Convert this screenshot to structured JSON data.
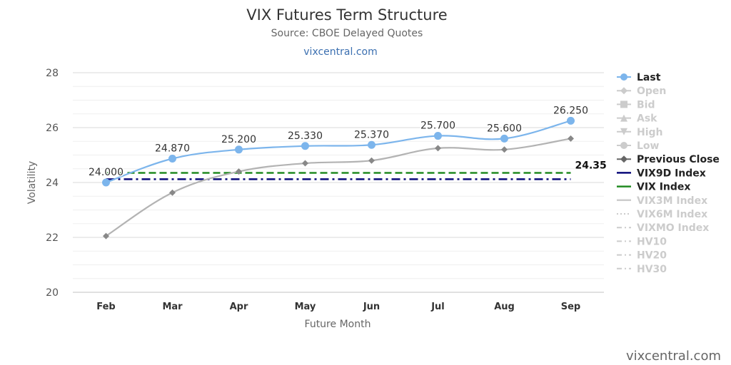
{
  "chart_data": {
    "type": "line",
    "title": "VIX Futures Term Structure",
    "subtitle": "Source: CBOE Delayed Quotes",
    "subtitle_link": "vixcentral.com",
    "credit": "vixcentral.com",
    "xlabel": "Future Month",
    "ylabel": "Volatility",
    "categories": [
      "Feb",
      "Mar",
      "Apr",
      "May",
      "Jun",
      "Jul",
      "Aug",
      "Sep"
    ],
    "ylim": [
      20,
      28
    ],
    "yticks": [
      "20",
      "22",
      "24",
      "26",
      "28"
    ],
    "grid": true,
    "legend_position": "right",
    "series": [
      {
        "name": "Last",
        "values": [
          24.0,
          24.87,
          25.2,
          25.33,
          25.37,
          25.7,
          25.6,
          26.25
        ],
        "labels": [
          "24.000",
          "24.870",
          "25.200",
          "25.330",
          "25.370",
          "25.700",
          "25.600",
          "26.250"
        ],
        "color": "#7cb5ec",
        "marker": "circle"
      },
      {
        "name": "Previous Close",
        "values": [
          22.05,
          23.63,
          24.4,
          24.7,
          24.8,
          25.25,
          25.2,
          25.6
        ],
        "color": "#b3b3b3",
        "marker": "diamond"
      }
    ],
    "reference_lines": [
      {
        "name": "VIX9D Index",
        "value": 24.12,
        "color": "#0a0a7a",
        "style": "dash-dot"
      },
      {
        "name": "VIX Index",
        "value": 24.35,
        "color": "#228b22",
        "style": "dash",
        "label": "24.35"
      }
    ],
    "legend": [
      {
        "label": "Last",
        "active": true,
        "symbol": "circle",
        "color": "#7cb5ec"
      },
      {
        "label": "Open",
        "active": false,
        "symbol": "diamond"
      },
      {
        "label": "Bid",
        "active": false,
        "symbol": "square"
      },
      {
        "label": "Ask",
        "active": false,
        "symbol": "triangle"
      },
      {
        "label": "High",
        "active": false,
        "symbol": "triangle-down"
      },
      {
        "label": "Low",
        "active": false,
        "symbol": "circle"
      },
      {
        "label": "Previous Close",
        "active": true,
        "symbol": "diamond",
        "color": "#666666"
      },
      {
        "label": "VIX9D Index",
        "active": true,
        "symbol": "line",
        "color": "#0a0a7a"
      },
      {
        "label": "VIX Index",
        "active": true,
        "symbol": "line",
        "color": "#228b22"
      },
      {
        "label": "VIX3M Index",
        "active": false,
        "symbol": "line"
      },
      {
        "label": "VIX6M Index",
        "active": false,
        "symbol": "dotted"
      },
      {
        "label": "VIXMO Index",
        "active": false,
        "symbol": "dash-dot"
      },
      {
        "label": "HV10",
        "active": false,
        "symbol": "dash-dot"
      },
      {
        "label": "HV20",
        "active": false,
        "symbol": "dash-dot"
      },
      {
        "label": "HV30",
        "active": false,
        "symbol": "dash-dot"
      }
    ]
  }
}
